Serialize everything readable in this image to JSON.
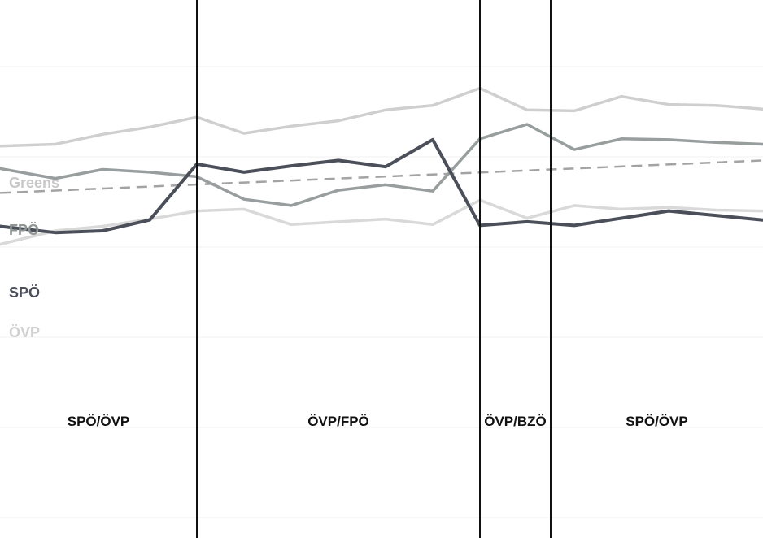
{
  "chart_data": {
    "type": "line",
    "title": "",
    "xlabel": "",
    "ylabel": "",
    "grid": true,
    "legend": "inline-left",
    "x_range": [
      0,
      16
    ],
    "y_range": [
      0,
      30
    ],
    "x": [
      0,
      1,
      2,
      3,
      4,
      5,
      6,
      7,
      8,
      9,
      10,
      11,
      12,
      13,
      14,
      15,
      16
    ],
    "series": [
      {
        "name": "Greens",
        "color": "#cfcfcf",
        "values": [
          21.2,
          21.4,
          22.5,
          23.3,
          24.4,
          22.6,
          23.4,
          24.0,
          25.2,
          25.7,
          27.6,
          25.2,
          25.1,
          26.7,
          25.8,
          25.7,
          25.3
        ]
      },
      {
        "name": "FPÖ",
        "color": "#979e9d",
        "values": [
          18.7,
          17.6,
          18.6,
          18.3,
          17.8,
          15.3,
          14.6,
          16.3,
          16.9,
          16.2,
          22.0,
          23.6,
          20.8,
          22.0,
          21.9,
          21.6,
          21.4
        ]
      },
      {
        "name": "SPÖ",
        "color": "#4a4f59",
        "values": [
          12.3,
          11.6,
          11.8,
          13.0,
          19.2,
          18.3,
          19.0,
          19.6,
          18.9,
          21.9,
          12.4,
          12.8,
          12.4,
          13.2,
          14.0,
          13.5,
          13.0
        ]
      },
      {
        "name": "ÖVP",
        "color": "#d9d9d9",
        "values": [
          10.3,
          11.8,
          12.3,
          13.1,
          14.0,
          14.2,
          12.5,
          12.8,
          13.1,
          12.5,
          15.2,
          13.2,
          14.6,
          14.2,
          14.4,
          14.1,
          14.0
        ]
      }
    ],
    "trend": {
      "color": "#a3a3a3",
      "from": [
        0,
        16.0
      ],
      "to": [
        16,
        19.6
      ]
    },
    "periods": [
      {
        "label": "SPÖ/ÖVP",
        "start": 0,
        "end": 4
      },
      {
        "label": "ÖVP/FPÖ",
        "start": 4,
        "end": 10
      },
      {
        "label": "ÖVP/BZÖ",
        "start": 10,
        "end": 11.5
      },
      {
        "label": "SPÖ/ÖVP",
        "start": 11.5,
        "end": 16
      }
    ]
  }
}
